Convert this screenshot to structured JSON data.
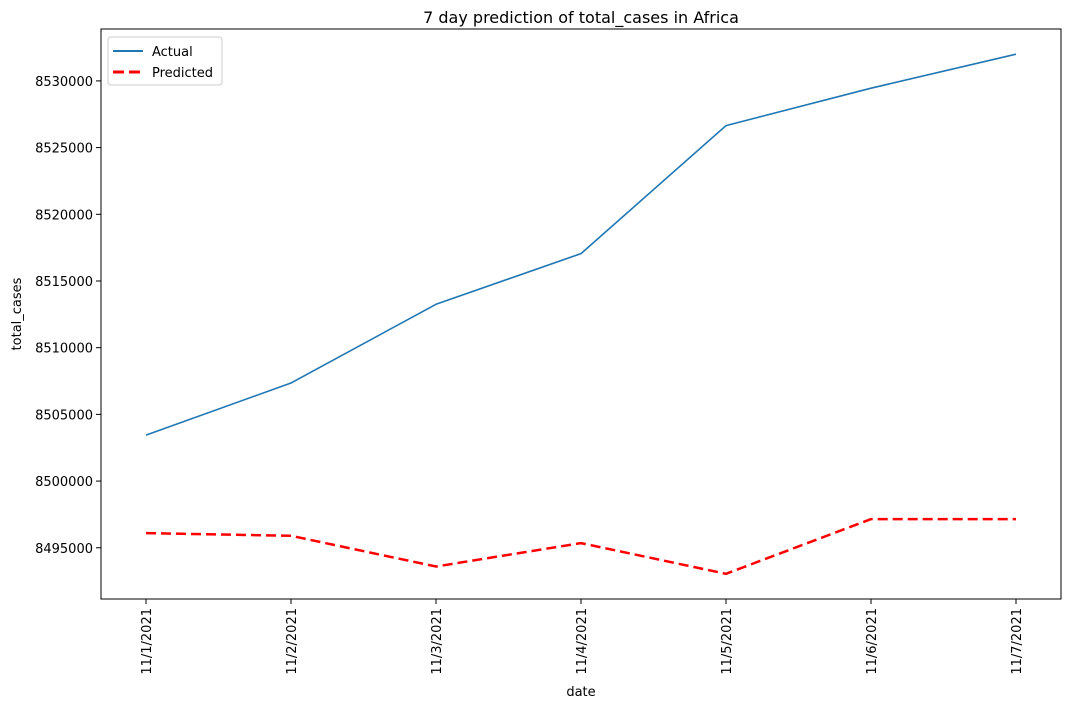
{
  "chart_data": {
    "type": "line",
    "title": "7 day prediction of total_cases in Africa",
    "xlabel": "date",
    "ylabel": "total_cases",
    "categories": [
      "11/1/2021",
      "11/2/2021",
      "11/3/2021",
      "11/4/2021",
      "11/5/2021",
      "11/6/2021",
      "11/7/2021"
    ],
    "series": [
      {
        "name": "Actual",
        "color": "#1f77b4",
        "style": "solid",
        "values": [
          8503450,
          8507350,
          8513250,
          8517050,
          8526650,
          8529450,
          8532000
        ]
      },
      {
        "name": "Predicted",
        "color": "#ff0000",
        "style": "dashed",
        "values": [
          8496100,
          8495900,
          8493600,
          8495350,
          8493050,
          8497150,
          8497150
        ]
      }
    ],
    "ylim": [
      8491160,
      8533890
    ],
    "yticks": [
      8495000,
      8500000,
      8505000,
      8510000,
      8515000,
      8520000,
      8525000,
      8530000
    ],
    "grid": false,
    "legend_position": "upper-left"
  }
}
